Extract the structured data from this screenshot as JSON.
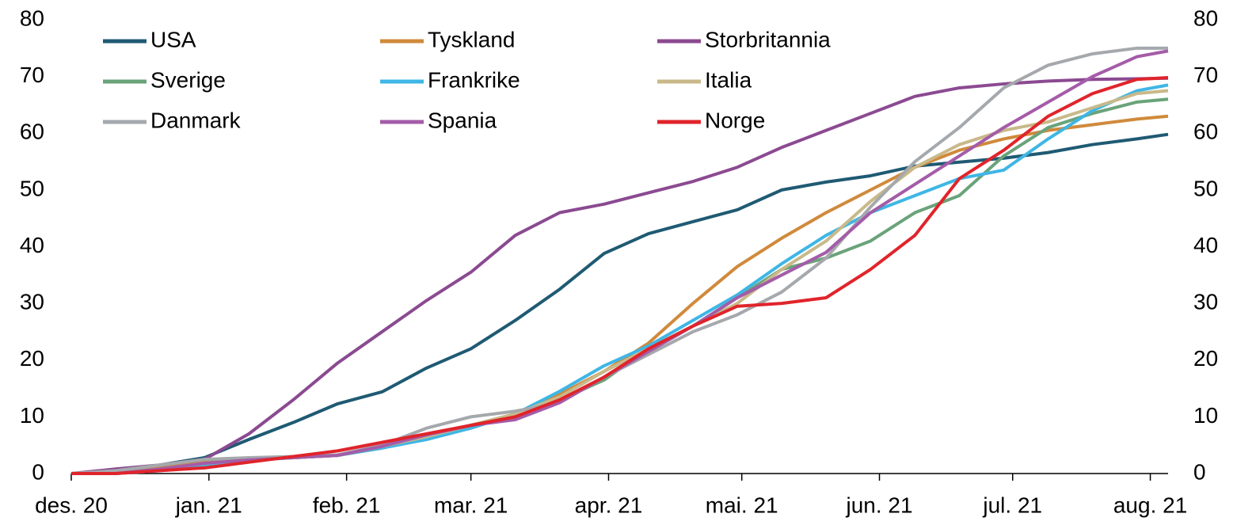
{
  "chart_data": {
    "type": "line",
    "x": [
      0,
      10,
      20,
      30,
      40,
      50,
      60,
      70,
      80,
      90,
      100,
      110,
      120,
      130,
      140,
      150,
      160,
      170,
      180,
      190,
      200,
      210,
      220,
      230,
      240,
      247
    ],
    "xlim": [
      0,
      247
    ],
    "xticks": [
      {
        "value": 0,
        "label": "des. 20"
      },
      {
        "value": 31,
        "label": "jan. 21"
      },
      {
        "value": 62,
        "label": "feb. 21"
      },
      {
        "value": 90,
        "label": "mar. 21"
      },
      {
        "value": 121,
        "label": "apr. 21"
      },
      {
        "value": 151,
        "label": "mai. 21"
      },
      {
        "value": 182,
        "label": "jun. 21"
      },
      {
        "value": 212,
        "label": "jul. 21"
      },
      {
        "value": 243,
        "label": "aug. 21"
      }
    ],
    "ylim": [
      0,
      80
    ],
    "yticks": [
      0,
      10,
      20,
      30,
      40,
      50,
      60,
      70,
      80
    ],
    "y2lim": [
      0,
      80
    ],
    "y2ticks": [
      0,
      10,
      20,
      30,
      40,
      50,
      60,
      70,
      80
    ],
    "legend": "top-left",
    "series": [
      {
        "name": "USA",
        "color": "#1f5a73",
        "values": [
          0,
          0.2,
          1.5,
          2.8,
          6,
          9,
          12.3,
          14.4,
          18.6,
          22,
          27,
          32.5,
          38.8,
          42.3,
          44.4,
          46.5,
          50,
          51.4,
          52.5,
          54.2,
          54.9,
          55.6,
          56.6,
          58,
          59,
          59.8
        ]
      },
      {
        "name": "Tyskland",
        "color": "#d08a3c",
        "values": [
          0,
          0.2,
          1,
          2,
          2.5,
          2.8,
          3.2,
          4.5,
          6.5,
          8.5,
          10.5,
          14,
          18,
          23,
          30,
          36.5,
          41.5,
          46,
          50,
          54,
          57,
          59,
          60.5,
          61.5,
          62.5,
          63
        ]
      },
      {
        "name": "Storbritannia",
        "color": "#8b4a91",
        "values": [
          0,
          0.8,
          1.5,
          2.5,
          7,
          13,
          19.5,
          25,
          30.5,
          35.5,
          42,
          46,
          47.5,
          49.5,
          51.5,
          54,
          57.5,
          60.5,
          63.5,
          66.5,
          68,
          68.7,
          69.2,
          69.5,
          69.6,
          69.7
        ]
      },
      {
        "name": "Sverige",
        "color": "#6aa37a",
        "values": [
          0,
          0,
          0.8,
          1.8,
          2.5,
          2.8,
          3.2,
          4.5,
          6.5,
          8.5,
          10.5,
          13,
          16.5,
          22,
          26,
          31,
          36,
          38,
          41,
          46,
          49,
          56,
          61,
          63.5,
          65.5,
          66
        ]
      },
      {
        "name": "Frankrike",
        "color": "#3fb6e5",
        "values": [
          0,
          0,
          0.5,
          1.5,
          2.3,
          2.8,
          3.2,
          4.5,
          6,
          8,
          10.5,
          14.5,
          19,
          22.5,
          27,
          31.5,
          37,
          42,
          46,
          49,
          52,
          53.5,
          59,
          64,
          67.5,
          68.5
        ]
      },
      {
        "name": "Italia",
        "color": "#c9b98a",
        "values": [
          0,
          0,
          0.8,
          1.8,
          2.4,
          2.8,
          3.2,
          4.8,
          6.5,
          8.5,
          10.5,
          13.5,
          18,
          22,
          26,
          30,
          36,
          41,
          48,
          54,
          58,
          60.5,
          62,
          64.5,
          67,
          67.5
        ]
      },
      {
        "name": "Danmark",
        "color": "#a5a9ad",
        "values": [
          0,
          0.5,
          1.5,
          2.5,
          2.8,
          3,
          3.3,
          5,
          8,
          10,
          11,
          12.5,
          17,
          21,
          25,
          28,
          32,
          38,
          47,
          55,
          61,
          68,
          72,
          74,
          75,
          75
        ]
      },
      {
        "name": "Spania",
        "color": "#a45ca8",
        "values": [
          0,
          0,
          0.8,
          1.8,
          2.4,
          2.8,
          3.2,
          4.8,
          6.8,
          8.5,
          9.5,
          12.5,
          17,
          21.5,
          26,
          31,
          35,
          39,
          46,
          51,
          56,
          61,
          65.5,
          70,
          73.5,
          74.5
        ]
      },
      {
        "name": "Norge",
        "color": "#e0242b",
        "values": [
          0,
          0,
          0.5,
          1,
          2,
          3,
          4,
          5.5,
          7,
          8.5,
          10,
          13,
          17,
          22,
          26,
          29.5,
          30,
          31,
          36,
          42,
          52,
          57,
          63,
          67,
          69.5,
          69.8
        ]
      }
    ]
  }
}
